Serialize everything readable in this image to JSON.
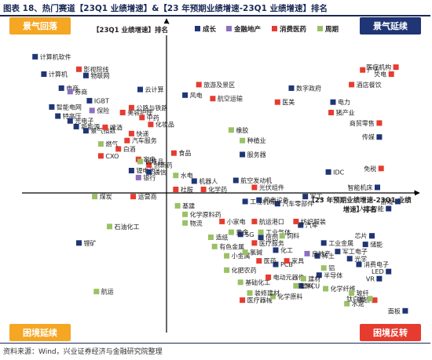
{
  "figure_title": "图表 18、热门赛道【23Q1 业绩增速】&【23 年预期业绩增速-23Q1 业绩增速】排名",
  "source_note": "资料来源：Wind，兴业证券经济与金融研究院整理",
  "chart_data": {
    "type": "scatter",
    "y_axis_label": "【23Q1 业绩增速】排名",
    "x_axis_label": [
      "【23 年预期业绩增速-23Q1 业绩",
      "增速】排名"
    ],
    "quadrants": {
      "top_left": {
        "text": "景气回落",
        "color": "#f5a623",
        "text_color": "#ffffff"
      },
      "top_right": {
        "text": "景气延续",
        "color": "#1f3575",
        "text_color": "#ffffff"
      },
      "bottom_left": {
        "text": "困境延续",
        "color": "#f5a623",
        "text_color": "#ffffff"
      },
      "bottom_right": {
        "text": "困境反转",
        "color": "#e63c2f",
        "text_color": "#ffffff"
      }
    },
    "grid": false,
    "legend_position": "top",
    "x_range": [
      -165,
      270
    ],
    "y_range": [
      -180,
      220
    ],
    "series": [
      {
        "name": "成长",
        "color": "#1f3575",
        "points": [
          {
            "label": "计算机软件",
            "x": -150,
            "y": 195
          },
          {
            "label": "计算机",
            "x": -140,
            "y": 170
          },
          {
            "label": "电商",
            "x": -120,
            "y": 150
          },
          {
            "label": "智能电网",
            "x": -131,
            "y": 123
          },
          {
            "label": "特高压",
            "x": -124,
            "y": 110
          },
          {
            "label": "光电子",
            "x": -110,
            "y": 103
          },
          {
            "label": "新能源",
            "x": -103,
            "y": 95
          },
          {
            "label": "景气指数",
            "x": -92,
            "y": 89
          },
          {
            "label": "云计算",
            "x": -30,
            "y": 148
          },
          {
            "label": "IGBT",
            "x": -88,
            "y": 132
          },
          {
            "label": "锂电池",
            "x": -40,
            "y": 32
          },
          {
            "label": "通信",
            "x": -20,
            "y": 30
          },
          {
            "label": "物联网",
            "x": -92,
            "y": 168
          },
          {
            "label": "风电",
            "x": 20,
            "y": 140
          },
          {
            "label": "服务器",
            "x": 82,
            "y": 55
          },
          {
            "label": "数字政府",
            "x": 135,
            "y": 150
          },
          {
            "label": "电力",
            "x": 180,
            "y": 130
          },
          {
            "label": "航空发动机",
            "x": 75,
            "y": 18
          },
          {
            "label": "机器人",
            "x": 30,
            "y": 17
          },
          {
            "label": "工程机械",
            "x": 85,
            "y": -12
          },
          {
            "label": "汽车零部件",
            "x": 120,
            "y": -15
          },
          {
            "label": "风电设备",
            "x": 100,
            "y": -10
          },
          {
            "label": "军工",
            "x": 150,
            "y": -5
          },
          {
            "label": "游戏",
            "x": 250,
            "y": -12
          },
          {
            "label": "人工智能",
            "x": 240,
            "y": -22
          },
          {
            "label": "IDC",
            "x": 175,
            "y": 30
          },
          {
            "label": "智能机床",
            "x": 228,
            "y": 8
          },
          {
            "label": "传媒",
            "x": 230,
            "y": 80
          },
          {
            "label": "锂矿",
            "x": -100,
            "y": -70
          },
          {
            "label": "工业金属",
            "x": 170,
            "y": -70
          },
          {
            "label": "军工电子",
            "x": 185,
            "y": -82
          },
          {
            "label": "消费电子",
            "x": 208,
            "y": -100
          },
          {
            "label": "LED",
            "x": 240,
            "y": -110
          },
          {
            "label": "VR",
            "x": 230,
            "y": -120
          },
          {
            "label": "半导体",
            "x": 165,
            "y": -115
          },
          {
            "label": "MCU",
            "x": 145,
            "y": -130
          },
          {
            "label": "光学",
            "x": 198,
            "y": -92
          },
          {
            "label": "PCB",
            "x": 118,
            "y": -100
          },
          {
            "label": "信创",
            "x": 102,
            "y": -62
          },
          {
            "label": "5G",
            "x": 80,
            "y": -58
          },
          {
            "label": "化工",
            "x": 118,
            "y": -80
          },
          {
            "label": "面板",
            "x": 258,
            "y": -165
          },
          {
            "label": "稀土",
            "x": 163,
            "y": -88
          },
          {
            "label": "储能",
            "x": 215,
            "y": -72
          },
          {
            "label": "芯片",
            "x": 222,
            "y": -60
          },
          {
            "label": "汽车",
            "x": 145,
            "y": -45
          }
        ]
      },
      {
        "name": "金融地产",
        "color": "#8e6fbf",
        "points": [
          {
            "label": "券商",
            "x": -110,
            "y": 145
          },
          {
            "label": "保险",
            "x": -85,
            "y": 118
          },
          {
            "label": "银行",
            "x": -32,
            "y": 22
          },
          {
            "label": "房地产",
            "x": 152,
            "y": -85
          }
        ]
      },
      {
        "name": "消费医药",
        "color": "#e63c2f",
        "points": [
          {
            "label": "影视院线",
            "x": -100,
            "y": 177
          },
          {
            "label": "旅游及景区",
            "x": 35,
            "y": 155
          },
          {
            "label": "航空运输",
            "x": 50,
            "y": 135
          },
          {
            "label": "公路与铁路",
            "x": -40,
            "y": 122
          },
          {
            "label": "美容护理",
            "x": -50,
            "y": 115
          },
          {
            "label": "中药",
            "x": -28,
            "y": 108
          },
          {
            "label": "化妆品",
            "x": -18,
            "y": 98
          },
          {
            "label": "医疗机构",
            "x": 248,
            "y": 180
          },
          {
            "label": "火电",
            "x": 243,
            "y": 170
          },
          {
            "label": "广告",
            "x": 212,
            "y": 176
          },
          {
            "label": "酒店餐饮",
            "x": 200,
            "y": 155
          },
          {
            "label": "猪产业",
            "x": 178,
            "y": 115
          },
          {
            "label": "商贸零售",
            "x": 230,
            "y": 100
          },
          {
            "label": "啤酒",
            "x": -70,
            "y": 94
          },
          {
            "label": "快递",
            "x": -40,
            "y": 85
          },
          {
            "label": "白酒",
            "x": -55,
            "y": 63
          },
          {
            "label": "CXO",
            "x": -75,
            "y": 53
          },
          {
            "label": "免税",
            "x": 232,
            "y": 35
          },
          {
            "label": "家电",
            "x": -32,
            "y": 48
          },
          {
            "label": "创新药",
            "x": -20,
            "y": 40
          },
          {
            "label": "食品",
            "x": 8,
            "y": 57
          },
          {
            "label": "汽车服务",
            "x": -45,
            "y": 75
          },
          {
            "label": "医美",
            "x": 120,
            "y": 130
          },
          {
            "label": "化学药",
            "x": 40,
            "y": 5
          },
          {
            "label": "社服",
            "x": 10,
            "y": 5
          },
          {
            "label": "光伏组件",
            "x": 95,
            "y": 8
          },
          {
            "label": "小家电",
            "x": 60,
            "y": -40
          },
          {
            "label": "纺织服装",
            "x": 140,
            "y": -40
          },
          {
            "label": "医疗服务",
            "x": 95,
            "y": -70
          },
          {
            "label": "医药",
            "x": 100,
            "y": -95
          },
          {
            "label": "家具",
            "x": 130,
            "y": -95
          },
          {
            "label": "电动元器件",
            "x": 110,
            "y": -118
          },
          {
            "label": "医疗器械",
            "x": 82,
            "y": -150
          },
          {
            "label": "钢铁",
            "x": 225,
            "y": -150
          },
          {
            "label": "运营商",
            "x": -38,
            "y": -5
          },
          {
            "label": "航运港口",
            "x": 95,
            "y": -40
          }
        ]
      },
      {
        "name": "周期",
        "color": "#9ac165",
        "points": [
          {
            "label": "燃气",
            "x": -75,
            "y": 70
          },
          {
            "label": "调味品",
            "x": -30,
            "y": 45
          },
          {
            "label": "水电",
            "x": 10,
            "y": 25
          },
          {
            "label": "煤炭",
            "x": -82,
            "y": -5
          },
          {
            "label": "橡胶",
            "x": 70,
            "y": 90
          },
          {
            "label": "种植业",
            "x": 82,
            "y": 75
          },
          {
            "label": "黄金",
            "x": 70,
            "y": -55
          },
          {
            "label": "基建",
            "x": 12,
            "y": -18
          },
          {
            "label": "化学原料药",
            "x": 20,
            "y": -30
          },
          {
            "label": "物流",
            "x": 20,
            "y": -42
          },
          {
            "label": "有色金属",
            "x": 52,
            "y": -75
          },
          {
            "label": "小金属",
            "x": 65,
            "y": -88
          },
          {
            "label": "氯碱",
            "x": 85,
            "y": -83
          },
          {
            "label": "化肥农药",
            "x": 65,
            "y": -108
          },
          {
            "label": "基础化工",
            "x": 80,
            "y": -125
          },
          {
            "label": "化学原料",
            "x": 115,
            "y": -145
          },
          {
            "label": "塑料",
            "x": 140,
            "y": -130
          },
          {
            "label": "建材",
            "x": 148,
            "y": -120
          },
          {
            "label": "化学纤维",
            "x": 172,
            "y": -134
          },
          {
            "label": "水泥",
            "x": 195,
            "y": -155
          },
          {
            "label": "航运",
            "x": -80,
            "y": -138
          },
          {
            "label": "石油化工",
            "x": -65,
            "y": -47
          },
          {
            "label": "工业气体",
            "x": 102,
            "y": -55
          },
          {
            "label": "饲料",
            "x": 125,
            "y": -60
          },
          {
            "label": "造纸",
            "x": 48,
            "y": -62
          },
          {
            "label": "装修建材",
            "x": 90,
            "y": -140
          },
          {
            "label": "铝",
            "x": 170,
            "y": -105
          },
          {
            "label": "玻纤",
            "x": 200,
            "y": -140
          },
          {
            "label": "钛白粉",
            "x": 220,
            "y": -148
          }
        ]
      }
    ]
  }
}
